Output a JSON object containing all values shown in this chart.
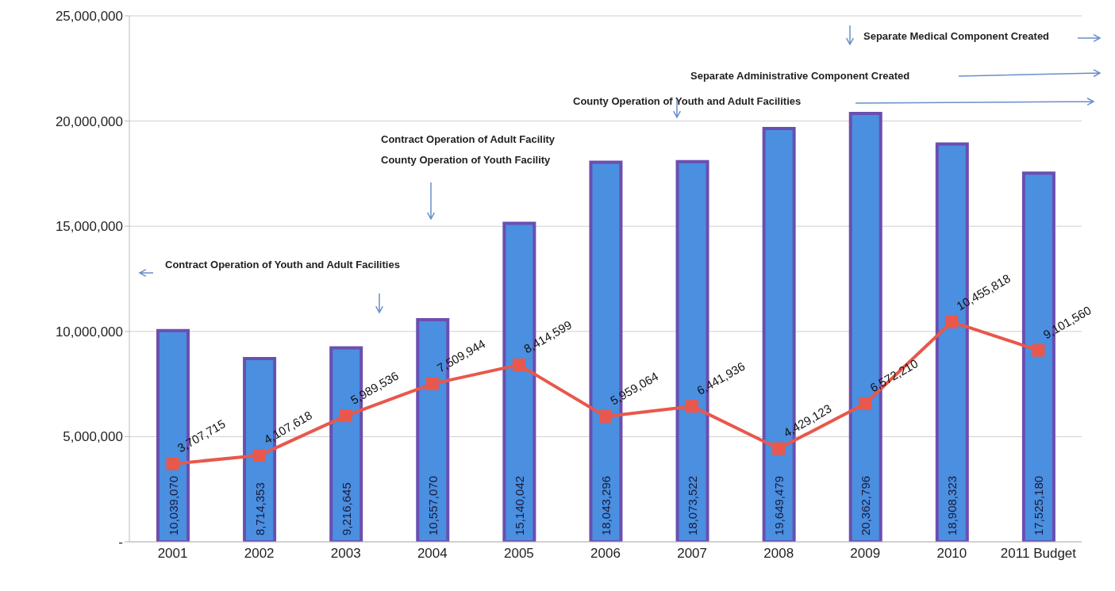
{
  "chart_data": {
    "type": "bar",
    "categories": [
      "2001",
      "2002",
      "2003",
      "2004",
      "2005",
      "2006",
      "2007",
      "2008",
      "2009",
      "2010",
      "2011 Budget"
    ],
    "series": [
      {
        "color": "#4a8fe0",
        "values": [
          10039070,
          8714353,
          9216645,
          10557070,
          15140042,
          18043296,
          18073522,
          19649479,
          20362796,
          18908323,
          17525180
        ],
        "value_labels": [
          "10,039,070",
          "8,714,353",
          "9,216,645",
          "10,557,070",
          "15,140,042",
          "18,043,296",
          "18,073,522",
          "19,649,479",
          "20,362,796",
          "18,908,323",
          "17,525,180"
        ]
      },
      {
        "type": "line",
        "color": "#e8584c",
        "marker": "square",
        "values": [
          3707715,
          4107618,
          5989536,
          7509944,
          8414599,
          5959064,
          6441936,
          4429123,
          6572210,
          10455818,
          9101560
        ],
        "value_labels": [
          "3,707,715",
          "4,107,618",
          "5,989,536",
          "7,509,944",
          "8,414,599",
          "5,959,064",
          "6,441,936",
          "4,429,123",
          "6,572,210",
          "10,455,818",
          "9,101,560"
        ]
      }
    ],
    "ylim": [
      0,
      25000000
    ],
    "yticks": [
      {
        "value": 0,
        "label": "-"
      },
      {
        "value": 5000000,
        "label": "5,000,000"
      },
      {
        "value": 10000000,
        "label": "10,000,000"
      },
      {
        "value": 15000000,
        "label": "15,000,000"
      },
      {
        "value": 20000000,
        "label": "20,000,000"
      },
      {
        "value": 25000000,
        "label": "25,000,000"
      }
    ],
    "grid": "y",
    "annotations": [
      "Separate Medical Component Created",
      "Separate Administrative Component Created",
      "County Operation of Youth and Adult Facilities",
      "Contract Operation of Adult Facility",
      "County Operation of Youth Facility",
      "Contract Operation of Youth and Adult Facilities"
    ]
  }
}
